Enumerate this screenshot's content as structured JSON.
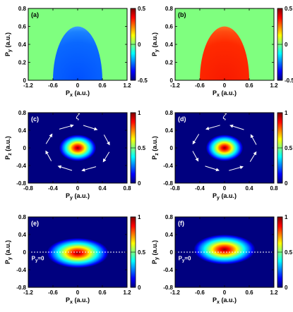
{
  "colors": {
    "jet": [
      "#00007f",
      "#0000ff",
      "#007fff",
      "#00ffff",
      "#7fff7f",
      "#ffff00",
      "#ff7f00",
      "#ff0000",
      "#7f0000"
    ],
    "background_div": "#7fff7f",
    "background_seq": "#00007f",
    "arrows": "#ffffff",
    "dotted_line": "#ffffff"
  },
  "panels": [
    {
      "id": "a",
      "label": "(a)",
      "kind": "diverging",
      "value": -0.45,
      "xlabel": "P_x (a.u.)",
      "ylabel": "P_y (a.u.)",
      "xticks": [
        "-1.2",
        "-0.6",
        "0",
        "0.6",
        "1.2"
      ],
      "xtick_vals": [
        -1.2,
        -0.6,
        0,
        0.6,
        1.2
      ],
      "yticks": [
        "0",
        "0.2",
        "0.4",
        "0.6",
        "0.8"
      ],
      "ytick_vals": [
        0,
        0.2,
        0.4,
        0.6,
        0.8
      ],
      "xlim": [
        -1.2,
        1.2
      ],
      "ylim": [
        0,
        0.8
      ],
      "cbar_ticks": [
        "0.5",
        "0",
        "-0.5"
      ]
    },
    {
      "id": "b",
      "label": "(b)",
      "kind": "diverging",
      "value": 0.45,
      "xlabel": "P_x (a.u.)",
      "ylabel": "P_y (a.u.)",
      "xticks": [
        "-1.2",
        "-0.6",
        "0",
        "0.6",
        "1.2"
      ],
      "xtick_vals": [
        -1.2,
        -0.6,
        0,
        0.6,
        1.2
      ],
      "yticks": [
        "0",
        "0.2",
        "0.4",
        "0.6",
        "0.8"
      ],
      "ytick_vals": [
        0,
        0.2,
        0.4,
        0.6,
        0.8
      ],
      "xlim": [
        -1.2,
        1.2
      ],
      "ylim": [
        0,
        0.8
      ],
      "cbar_ticks": [
        "0.5",
        "0",
        "-0.5"
      ]
    },
    {
      "id": "c",
      "label": "(c)",
      "kind": "gauss_yz",
      "xlabel": "P_y (a.u.)",
      "ylabel": "P_z (a.u.)",
      "xticks": [
        "-0.8",
        "-0.4",
        "0",
        "0.4",
        "0.8"
      ],
      "xtick_vals": [
        -0.8,
        -0.4,
        0,
        0.4,
        0.8
      ],
      "yticks": [
        "-0.8",
        "-0.4",
        "0",
        "0.4",
        "0.8"
      ],
      "ytick_vals": [
        -0.8,
        -0.4,
        0,
        0.4,
        0.8
      ],
      "xlim": [
        -0.8,
        0.8
      ],
      "ylim": [
        -0.8,
        0.8
      ],
      "cbar_ticks": [
        "1",
        "0.5",
        "0"
      ],
      "annotation": "ζ",
      "rotation": "clockwise"
    },
    {
      "id": "d",
      "label": "(d)",
      "kind": "gauss_yz",
      "xlabel": "P_y (a.u.)",
      "ylabel": "P_z (a.u.)",
      "xticks": [
        "-0.8",
        "-0.4",
        "0",
        "0.4",
        "0.8"
      ],
      "xtick_vals": [
        -0.8,
        -0.4,
        0,
        0.4,
        0.8
      ],
      "yticks": [
        "-0.8",
        "-0.4",
        "0",
        "0.4",
        "0.8"
      ],
      "ytick_vals": [
        -0.8,
        -0.4,
        0,
        0.4,
        0.8
      ],
      "xlim": [
        -0.8,
        0.8
      ],
      "ylim": [
        -0.8,
        0.8
      ],
      "cbar_ticks": [
        "1",
        "0.5",
        "0"
      ],
      "annotation": "ζ",
      "rotation": "counterclockwise"
    },
    {
      "id": "e",
      "label": "(e)",
      "kind": "gauss_xy",
      "xlabel": "P_x (a.u.)",
      "ylabel": "P_y (a.u.)",
      "xticks": [
        "-1.2",
        "-0.6",
        "0",
        "0.6",
        "1.2"
      ],
      "xtick_vals": [
        -1.2,
        -0.6,
        0,
        0.6,
        1.2
      ],
      "yticks": [
        "-0.8",
        "-0.4",
        "0",
        "0.4",
        "0.8"
      ],
      "ytick_vals": [
        -0.8,
        -0.4,
        0,
        0.4,
        0.8
      ],
      "xlim": [
        -1.2,
        1.2
      ],
      "ylim": [
        -0.8,
        0.8
      ],
      "cbar_ticks": [
        "1",
        "0.5",
        "0"
      ],
      "annotation": "P_y=0",
      "peak": [
        0,
        -0.02
      ]
    },
    {
      "id": "f",
      "label": "(f)",
      "kind": "gauss_xy",
      "xlabel": "P_x (a.u.)",
      "ylabel": "P_y (a.u.)",
      "xticks": [
        "-1.2",
        "-0.6",
        "0",
        "0.6",
        "1.2"
      ],
      "xtick_vals": [
        -1.2,
        -0.6,
        0,
        0.6,
        1.2
      ],
      "yticks": [
        "-0.8",
        "-0.4",
        "0",
        "0.4",
        "0.8"
      ],
      "ytick_vals": [
        -0.8,
        -0.4,
        0,
        0.4,
        0.8
      ],
      "xlim": [
        -1.2,
        1.2
      ],
      "ylim": [
        -0.8,
        0.8
      ],
      "cbar_ticks": [
        "1",
        "0.5",
        "0"
      ],
      "annotation": "P_y=0",
      "peak": [
        0,
        0.06
      ]
    }
  ],
  "chart_data": [
    {
      "type": "heatmap",
      "panel": "(a)",
      "xlabel": "P_x (a.u.)",
      "ylabel": "P_y (a.u.)",
      "xlim": [
        -1.2,
        1.2
      ],
      "ylim": [
        0,
        0.8
      ],
      "colorbar": [
        -0.5,
        0.5
      ],
      "description_values": {
        "inside_semicircle_radius_0.6": -0.45,
        "outside": 0
      }
    },
    {
      "type": "heatmap",
      "panel": "(b)",
      "xlabel": "P_x (a.u.)",
      "ylabel": "P_y (a.u.)",
      "xlim": [
        -1.2,
        1.2
      ],
      "ylim": [
        0,
        0.8
      ],
      "colorbar": [
        -0.5,
        0.5
      ],
      "description_values": {
        "inside_semicircle_radius_0.6": 0.45,
        "outside": 0
      }
    },
    {
      "type": "heatmap",
      "panel": "(c)",
      "xlabel": "P_y (a.u.)",
      "ylabel": "P_z (a.u.)",
      "xlim": [
        -0.8,
        0.8
      ],
      "ylim": [
        -0.8,
        0.8
      ],
      "colorbar": [
        0,
        1
      ],
      "peak": {
        "x": 0,
        "y": 0,
        "value": 1
      }
    },
    {
      "type": "heatmap",
      "panel": "(d)",
      "xlabel": "P_y (a.u.)",
      "ylabel": "P_z (a.u.)",
      "xlim": [
        -0.8,
        0.8
      ],
      "ylim": [
        -0.8,
        0.8
      ],
      "colorbar": [
        0,
        1
      ],
      "peak": {
        "x": 0,
        "y": 0,
        "value": 1
      }
    },
    {
      "type": "heatmap",
      "panel": "(e)",
      "xlabel": "P_x (a.u.)",
      "ylabel": "P_y (a.u.)",
      "xlim": [
        -1.2,
        1.2
      ],
      "ylim": [
        -0.8,
        0.8
      ],
      "colorbar": [
        0,
        1
      ],
      "peak": {
        "x": 0,
        "y": -0.02,
        "value": 1
      }
    },
    {
      "type": "heatmap",
      "panel": "(f)",
      "xlabel": "P_x (a.u.)",
      "ylabel": "P_y (a.u.)",
      "xlim": [
        -1.2,
        1.2
      ],
      "ylim": [
        -0.8,
        0.8
      ],
      "colorbar": [
        0,
        1
      ],
      "peak": {
        "x": 0,
        "y": 0.06,
        "value": 1
      }
    }
  ]
}
